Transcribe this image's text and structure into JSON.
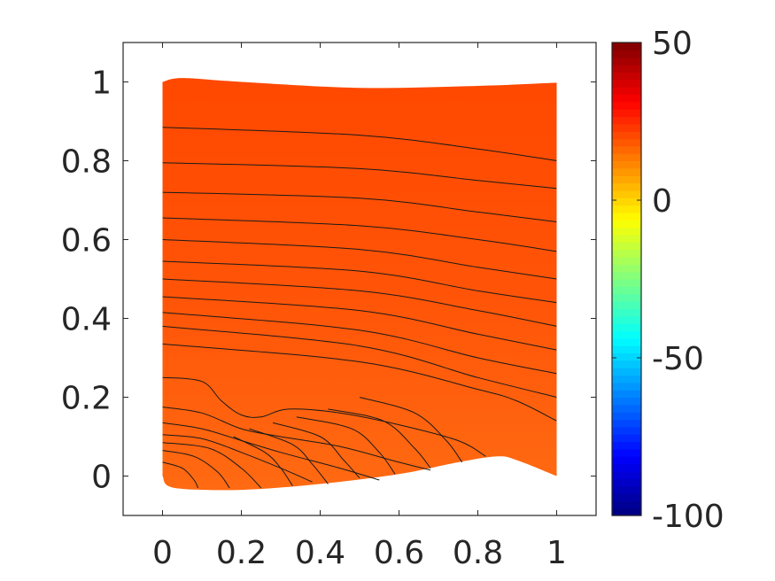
{
  "chart_data": {
    "type": "heatmap",
    "title": "",
    "xlabel": "",
    "ylabel": "",
    "xlim": [
      -0.1,
      1.1
    ],
    "ylim": [
      -0.1,
      1.1
    ],
    "x_ticks": [
      "0",
      "0.2",
      "0.4",
      "0.6",
      "0.8",
      "1"
    ],
    "y_ticks": [
      "0",
      "0.2",
      "0.4",
      "0.6",
      "0.8",
      "1"
    ],
    "x_tick_values": [
      0,
      0.2,
      0.4,
      0.6,
      0.8,
      1
    ],
    "y_tick_values": [
      0,
      0.2,
      0.4,
      0.6,
      0.8,
      1
    ],
    "colorbar": {
      "colormap": "jet",
      "range": [
        -100,
        50
      ],
      "ticks": [
        "50",
        "0",
        "-50",
        "-100"
      ],
      "tick_values": [
        50,
        0,
        -50,
        -100
      ]
    },
    "grid": false,
    "field_value_range": [
      20,
      26
    ],
    "domain": {
      "top_boundary": [
        [
          0,
          1.0
        ],
        [
          0.05,
          1.01
        ],
        [
          0.2,
          1.0
        ],
        [
          0.5,
          0.985
        ],
        [
          0.8,
          0.99
        ],
        [
          1.0,
          0.998
        ]
      ],
      "bottom_boundary": [
        [
          0,
          0.0
        ],
        [
          0.03,
          -0.03
        ],
        [
          0.2,
          -0.035
        ],
        [
          0.4,
          -0.02
        ],
        [
          0.6,
          0.005
        ],
        [
          0.75,
          0.035
        ],
        [
          0.85,
          0.05
        ],
        [
          0.9,
          0.04
        ],
        [
          1.0,
          0.0
        ]
      ]
    },
    "contours_horizontal": [
      [
        [
          0,
          0.885
        ],
        [
          0.5,
          0.865
        ],
        [
          0.8,
          0.83
        ],
        [
          1.0,
          0.8
        ]
      ],
      [
        [
          0,
          0.795
        ],
        [
          0.5,
          0.78
        ],
        [
          0.8,
          0.75
        ],
        [
          1.0,
          0.73
        ]
      ],
      [
        [
          0,
          0.72
        ],
        [
          0.5,
          0.705
        ],
        [
          0.8,
          0.67
        ],
        [
          1.0,
          0.645
        ]
      ],
      [
        [
          0,
          0.655
        ],
        [
          0.5,
          0.635
        ],
        [
          0.8,
          0.6
        ],
        [
          1.0,
          0.57
        ]
      ],
      [
        [
          0,
          0.6
        ],
        [
          0.5,
          0.575
        ],
        [
          0.8,
          0.53
        ],
        [
          1.0,
          0.5
        ]
      ],
      [
        [
          0,
          0.545
        ],
        [
          0.5,
          0.52
        ],
        [
          0.8,
          0.47
        ],
        [
          1.0,
          0.44
        ]
      ],
      [
        [
          0,
          0.5
        ],
        [
          0.5,
          0.47
        ],
        [
          0.8,
          0.42
        ],
        [
          1.0,
          0.38
        ]
      ],
      [
        [
          0,
          0.455
        ],
        [
          0.5,
          0.42
        ],
        [
          0.8,
          0.36
        ],
        [
          1.0,
          0.32
        ]
      ],
      [
        [
          0,
          0.415
        ],
        [
          0.5,
          0.37
        ],
        [
          0.8,
          0.3
        ],
        [
          1.0,
          0.26
        ]
      ],
      [
        [
          0,
          0.38
        ],
        [
          0.5,
          0.33
        ],
        [
          0.8,
          0.25
        ],
        [
          1.0,
          0.2
        ]
      ],
      [
        [
          0,
          0.335
        ],
        [
          0.5,
          0.29
        ],
        [
          0.8,
          0.22
        ],
        [
          0.9,
          0.19
        ],
        [
          1.0,
          0.14
        ]
      ],
      [
        [
          0,
          0.25
        ],
        [
          0.1,
          0.24
        ],
        [
          0.15,
          0.19
        ],
        [
          0.2,
          0.155
        ],
        [
          0.25,
          0.15
        ],
        [
          0.32,
          0.17
        ],
        [
          0.45,
          0.16
        ],
        [
          0.6,
          0.13
        ],
        [
          0.75,
          0.09
        ],
        [
          0.82,
          0.05
        ]
      ],
      [
        [
          0,
          0.175
        ],
        [
          0.1,
          0.16
        ],
        [
          0.2,
          0.12
        ],
        [
          0.3,
          0.1
        ],
        [
          0.45,
          0.075
        ],
        [
          0.6,
          0.035
        ],
        [
          0.68,
          0.015
        ]
      ],
      [
        [
          0,
          0.135
        ],
        [
          0.1,
          0.12
        ],
        [
          0.2,
          0.09
        ],
        [
          0.3,
          0.06
        ],
        [
          0.45,
          0.02
        ],
        [
          0.55,
          -0.01
        ]
      ],
      [
        [
          0,
          0.105
        ],
        [
          0.1,
          0.095
        ],
        [
          0.2,
          0.06
        ],
        [
          0.3,
          0.02
        ],
        [
          0.38,
          -0.015
        ]
      ]
    ],
    "contours_radial": [
      [
        [
          0,
          0.035
        ],
        [
          0.05,
          0.02
        ],
        [
          0.08,
          -0.01
        ],
        [
          0.09,
          -0.03
        ]
      ],
      [
        [
          0,
          0.065
        ],
        [
          0.08,
          0.05
        ],
        [
          0.14,
          0.01
        ],
        [
          0.17,
          -0.03
        ]
      ],
      [
        [
          0,
          0.085
        ],
        [
          0.12,
          0.07
        ],
        [
          0.2,
          0.02
        ],
        [
          0.25,
          -0.03
        ]
      ],
      [
        [
          0.18,
          0.1
        ],
        [
          0.26,
          0.06
        ],
        [
          0.3,
          0.02
        ],
        [
          0.33,
          -0.025
        ]
      ],
      [
        [
          0.22,
          0.12
        ],
        [
          0.33,
          0.08
        ],
        [
          0.38,
          0.03
        ],
        [
          0.42,
          -0.02
        ]
      ],
      [
        [
          0.28,
          0.135
        ],
        [
          0.4,
          0.1
        ],
        [
          0.46,
          0.04
        ],
        [
          0.5,
          -0.005
        ]
      ],
      [
        [
          0.34,
          0.15
        ],
        [
          0.48,
          0.12
        ],
        [
          0.55,
          0.06
        ],
        [
          0.59,
          0.005
        ]
      ],
      [
        [
          0.42,
          0.17
        ],
        [
          0.56,
          0.14
        ],
        [
          0.64,
          0.07
        ],
        [
          0.68,
          0.02
        ]
      ],
      [
        [
          0.5,
          0.2
        ],
        [
          0.64,
          0.16
        ],
        [
          0.72,
          0.09
        ],
        [
          0.76,
          0.035
        ]
      ]
    ]
  }
}
